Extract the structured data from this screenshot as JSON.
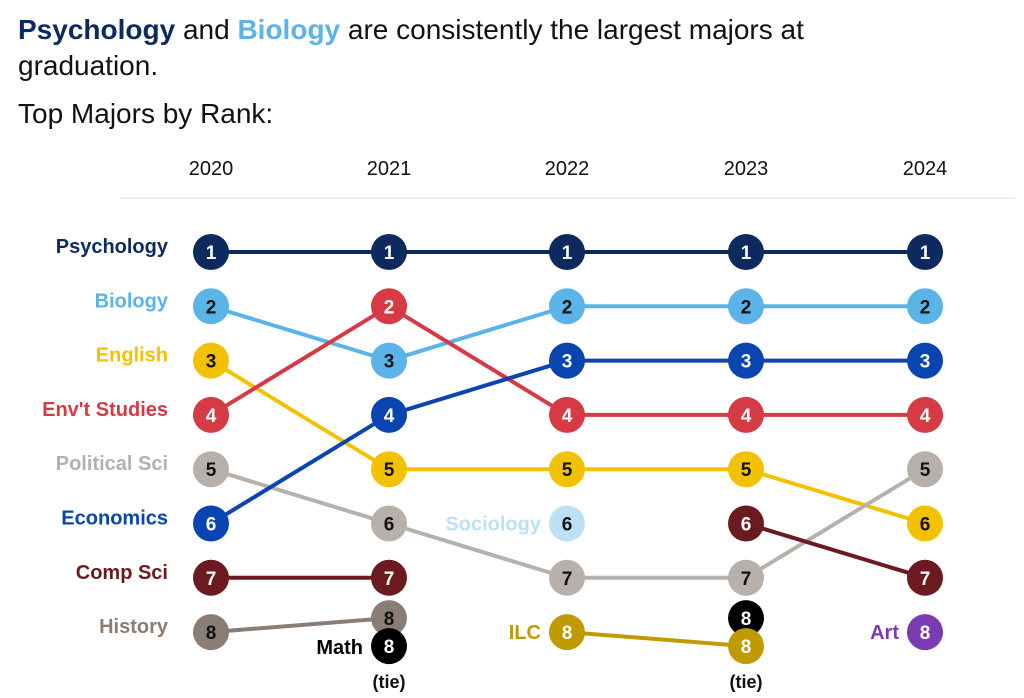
{
  "title": {
    "part1": "Psychology",
    "part2": " and ",
    "part3": "Biology",
    "part4": " are consistently the largest majors at graduation.",
    "color1": "#0d2a5e",
    "color3": "#5ab4e8"
  },
  "subtitle": "Top Majors by Rank:",
  "chart_data": {
    "type": "bump",
    "years": [
      "2020",
      "2021",
      "2022",
      "2023",
      "2024"
    ],
    "tie_label": "(tie)",
    "series": [
      {
        "name": "Psychology",
        "color": "#0d2a5e",
        "text": "#fff",
        "ranks": [
          1,
          1,
          1,
          1,
          1
        ],
        "label_pos": "row"
      },
      {
        "name": "Biology",
        "color": "#5ab4e8",
        "text": "#111",
        "ranks": [
          2,
          3,
          2,
          2,
          2
        ],
        "label_pos": "row"
      },
      {
        "name": "English",
        "color": "#f2c200",
        "text": "#111",
        "ranks": [
          3,
          5,
          5,
          5,
          6
        ],
        "label_pos": "row"
      },
      {
        "name": "Env't Studies",
        "color": "#d63a45",
        "text": "#fff",
        "ranks": [
          4,
          2,
          4,
          4,
          4
        ],
        "label_pos": "row"
      },
      {
        "name": "Political Sci",
        "color": "#b8b0ab",
        "text": "#111",
        "ranks": [
          5,
          6,
          7,
          7,
          5
        ],
        "label_pos": "row"
      },
      {
        "name": "Economics",
        "color": "#0a44b0",
        "text": "#fff",
        "ranks": [
          6,
          4,
          3,
          3,
          3
        ],
        "label_pos": "row"
      },
      {
        "name": "Comp Sci",
        "color": "#6b1a1f",
        "text": "#fff",
        "ranks": [
          7,
          7,
          null,
          6,
          7
        ],
        "label_pos": "row",
        "break_after": [
          1
        ]
      },
      {
        "name": "History",
        "color": "#8a7d76",
        "text": "#111",
        "ranks": [
          8,
          8,
          null,
          null,
          null
        ],
        "label_pos": "row",
        "ties": [
          1
        ]
      },
      {
        "name": "Math",
        "color": "#000000",
        "text": "#fff",
        "ranks": [
          null,
          8,
          null,
          8,
          null
        ],
        "label_pos": "inline",
        "ties": [
          1,
          3
        ],
        "no_line": true
      },
      {
        "name": "Sociology",
        "color": "#bde0f5",
        "text": "#111",
        "ranks": [
          null,
          null,
          6,
          null,
          null
        ],
        "label_pos": "inline"
      },
      {
        "name": "ILC",
        "color": "#bf9a00",
        "text": "#fff",
        "ranks": [
          null,
          null,
          8,
          8,
          null
        ],
        "label_pos": "inline",
        "ties": [
          3
        ]
      },
      {
        "name": "Art",
        "color": "#7a3cb0",
        "text": "#fff",
        "ranks": [
          null,
          null,
          null,
          null,
          8
        ],
        "label_pos": "inline"
      }
    ]
  }
}
